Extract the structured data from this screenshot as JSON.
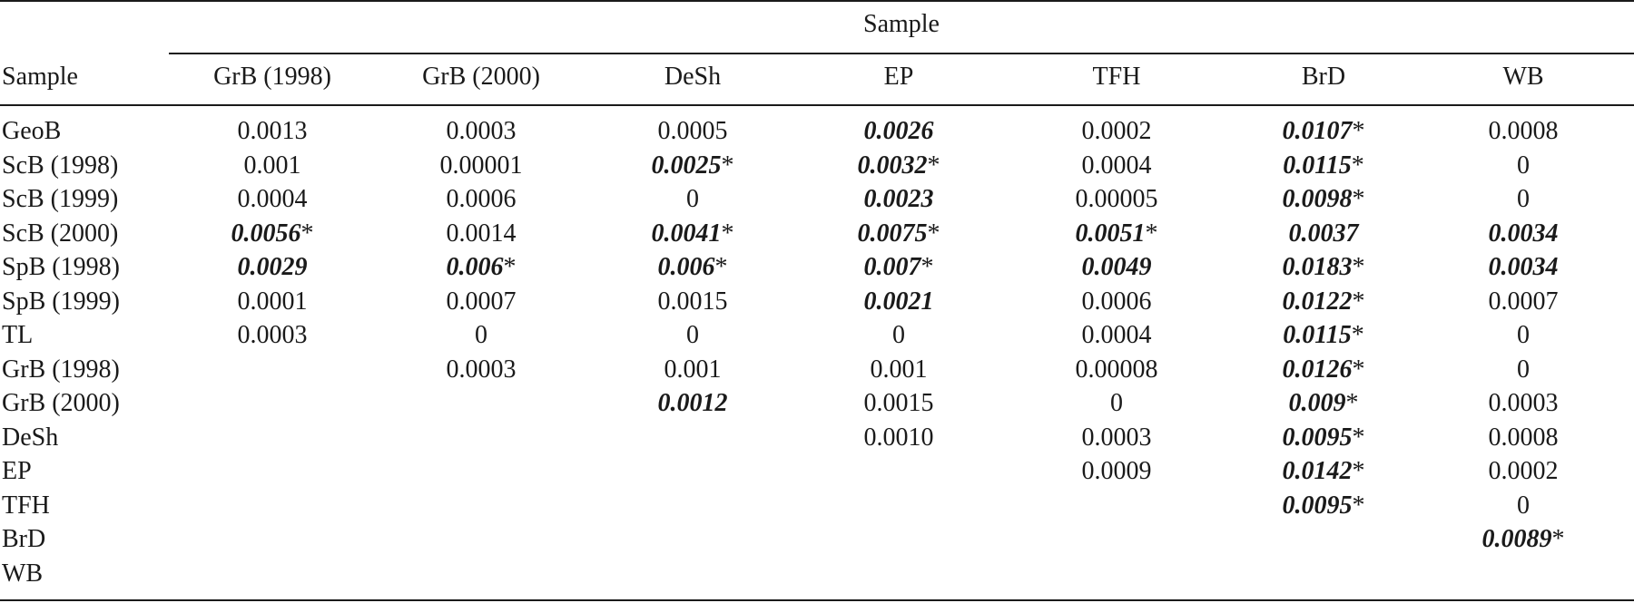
{
  "table": {
    "spanner_label": "Sample",
    "stub_header": "Sample",
    "columns": [
      "GrB (1998)",
      "GrB (2000)",
      "DeSh",
      "EP",
      "TFH",
      "BrD",
      "WB"
    ],
    "rows": [
      {
        "label": "GeoB",
        "cells": [
          {
            "v": "0.0013",
            "sig": false,
            "star": ""
          },
          {
            "v": "0.0003",
            "sig": false,
            "star": ""
          },
          {
            "v": "0.0005",
            "sig": false,
            "star": ""
          },
          {
            "v": "0.0026",
            "sig": true,
            "star": ""
          },
          {
            "v": "0.0002",
            "sig": false,
            "star": ""
          },
          {
            "v": "0.0107",
            "sig": true,
            "star": "*"
          },
          {
            "v": "0.0008",
            "sig": false,
            "star": ""
          }
        ]
      },
      {
        "label": "ScB (1998)",
        "cells": [
          {
            "v": "0.001",
            "sig": false,
            "star": ""
          },
          {
            "v": "0.00001",
            "sig": false,
            "star": ""
          },
          {
            "v": "0.0025",
            "sig": true,
            "star": "*"
          },
          {
            "v": "0.0032",
            "sig": true,
            "star": "*"
          },
          {
            "v": "0.0004",
            "sig": false,
            "star": ""
          },
          {
            "v": "0.0115",
            "sig": true,
            "star": "*"
          },
          {
            "v": "0",
            "sig": false,
            "star": ""
          }
        ]
      },
      {
        "label": "ScB (1999)",
        "cells": [
          {
            "v": "0.0004",
            "sig": false,
            "star": ""
          },
          {
            "v": "0.0006",
            "sig": false,
            "star": ""
          },
          {
            "v": "0",
            "sig": false,
            "star": ""
          },
          {
            "v": "0.0023",
            "sig": true,
            "star": ""
          },
          {
            "v": "0.00005",
            "sig": false,
            "star": ""
          },
          {
            "v": "0.0098",
            "sig": true,
            "star": "*"
          },
          {
            "v": "0",
            "sig": false,
            "star": ""
          }
        ]
      },
      {
        "label": "ScB (2000)",
        "cells": [
          {
            "v": "0.0056",
            "sig": true,
            "star": "*"
          },
          {
            "v": "0.0014",
            "sig": false,
            "star": ""
          },
          {
            "v": "0.0041",
            "sig": true,
            "star": "*"
          },
          {
            "v": "0.0075",
            "sig": true,
            "star": "*"
          },
          {
            "v": "0.0051",
            "sig": true,
            "star": "*"
          },
          {
            "v": "0.0037",
            "sig": true,
            "star": ""
          },
          {
            "v": "0.0034",
            "sig": true,
            "star": ""
          }
        ]
      },
      {
        "label": "SpB (1998)",
        "cells": [
          {
            "v": "0.0029",
            "sig": true,
            "star": ""
          },
          {
            "v": "0.006",
            "sig": true,
            "star": "*"
          },
          {
            "v": "0.006",
            "sig": true,
            "star": "*"
          },
          {
            "v": "0.007",
            "sig": true,
            "star": "*"
          },
          {
            "v": "0.0049",
            "sig": true,
            "star": ""
          },
          {
            "v": "0.0183",
            "sig": true,
            "star": "*"
          },
          {
            "v": "0.0034",
            "sig": true,
            "star": ""
          }
        ]
      },
      {
        "label": "SpB (1999)",
        "cells": [
          {
            "v": "0.0001",
            "sig": false,
            "star": ""
          },
          {
            "v": "0.0007",
            "sig": false,
            "star": ""
          },
          {
            "v": "0.0015",
            "sig": false,
            "star": ""
          },
          {
            "v": "0.0021",
            "sig": true,
            "star": ""
          },
          {
            "v": "0.0006",
            "sig": false,
            "star": ""
          },
          {
            "v": "0.0122",
            "sig": true,
            "star": "*"
          },
          {
            "v": "0.0007",
            "sig": false,
            "star": ""
          }
        ]
      },
      {
        "label": "TL",
        "cells": [
          {
            "v": "0.0003",
            "sig": false,
            "star": ""
          },
          {
            "v": "0",
            "sig": false,
            "star": ""
          },
          {
            "v": "0",
            "sig": false,
            "star": ""
          },
          {
            "v": "0",
            "sig": false,
            "star": ""
          },
          {
            "v": "0.0004",
            "sig": false,
            "star": ""
          },
          {
            "v": "0.0115",
            "sig": true,
            "star": "*"
          },
          {
            "v": "0",
            "sig": false,
            "star": ""
          }
        ]
      },
      {
        "label": "GrB (1998)",
        "cells": [
          {
            "v": "",
            "sig": false,
            "star": ""
          },
          {
            "v": "0.0003",
            "sig": false,
            "star": ""
          },
          {
            "v": "0.001",
            "sig": false,
            "star": ""
          },
          {
            "v": "0.001",
            "sig": false,
            "star": ""
          },
          {
            "v": "0.00008",
            "sig": false,
            "star": ""
          },
          {
            "v": "0.0126",
            "sig": true,
            "star": "*"
          },
          {
            "v": "0",
            "sig": false,
            "star": ""
          }
        ]
      },
      {
        "label": "GrB (2000)",
        "cells": [
          {
            "v": "",
            "sig": false,
            "star": ""
          },
          {
            "v": "",
            "sig": false,
            "star": ""
          },
          {
            "v": "0.0012",
            "sig": true,
            "star": ""
          },
          {
            "v": "0.0015",
            "sig": false,
            "star": ""
          },
          {
            "v": "0",
            "sig": false,
            "star": ""
          },
          {
            "v": "0.009",
            "sig": true,
            "star": "*"
          },
          {
            "v": "0.0003",
            "sig": false,
            "star": ""
          }
        ]
      },
      {
        "label": "DeSh",
        "cells": [
          {
            "v": "",
            "sig": false,
            "star": ""
          },
          {
            "v": "",
            "sig": false,
            "star": ""
          },
          {
            "v": "",
            "sig": false,
            "star": ""
          },
          {
            "v": "0.0010",
            "sig": false,
            "star": ""
          },
          {
            "v": "0.0003",
            "sig": false,
            "star": ""
          },
          {
            "v": "0.0095",
            "sig": true,
            "star": "*"
          },
          {
            "v": "0.0008",
            "sig": false,
            "star": ""
          }
        ]
      },
      {
        "label": "EP",
        "cells": [
          {
            "v": "",
            "sig": false,
            "star": ""
          },
          {
            "v": "",
            "sig": false,
            "star": ""
          },
          {
            "v": "",
            "sig": false,
            "star": ""
          },
          {
            "v": "",
            "sig": false,
            "star": ""
          },
          {
            "v": "0.0009",
            "sig": false,
            "star": ""
          },
          {
            "v": "0.0142",
            "sig": true,
            "star": "*"
          },
          {
            "v": "0.0002",
            "sig": false,
            "star": ""
          }
        ]
      },
      {
        "label": "TFH",
        "cells": [
          {
            "v": "",
            "sig": false,
            "star": ""
          },
          {
            "v": "",
            "sig": false,
            "star": ""
          },
          {
            "v": "",
            "sig": false,
            "star": ""
          },
          {
            "v": "",
            "sig": false,
            "star": ""
          },
          {
            "v": "",
            "sig": false,
            "star": ""
          },
          {
            "v": "0.0095",
            "sig": true,
            "star": "*"
          },
          {
            "v": "0",
            "sig": false,
            "star": ""
          }
        ]
      },
      {
        "label": "BrD",
        "cells": [
          {
            "v": "",
            "sig": false,
            "star": ""
          },
          {
            "v": "",
            "sig": false,
            "star": ""
          },
          {
            "v": "",
            "sig": false,
            "star": ""
          },
          {
            "v": "",
            "sig": false,
            "star": ""
          },
          {
            "v": "",
            "sig": false,
            "star": ""
          },
          {
            "v": "",
            "sig": false,
            "star": ""
          },
          {
            "v": "0.0089",
            "sig": true,
            "star": "*"
          }
        ]
      },
      {
        "label": "WB",
        "cells": [
          {
            "v": "",
            "sig": false,
            "star": ""
          },
          {
            "v": "",
            "sig": false,
            "star": ""
          },
          {
            "v": "",
            "sig": false,
            "star": ""
          },
          {
            "v": "",
            "sig": false,
            "star": ""
          },
          {
            "v": "",
            "sig": false,
            "star": ""
          },
          {
            "v": "",
            "sig": false,
            "star": ""
          },
          {
            "v": "",
            "sig": false,
            "star": ""
          }
        ]
      }
    ]
  }
}
